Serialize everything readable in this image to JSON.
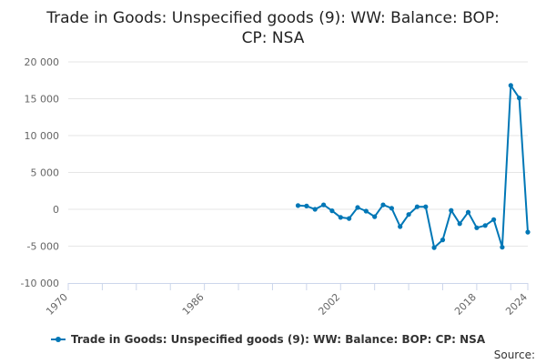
{
  "chart_data": {
    "type": "line",
    "title_lines": [
      "Trade in Goods: Unspecified goods (9): WW: Balance: BOP:",
      "CP: NSA"
    ],
    "xlabel": "",
    "ylabel": "",
    "ylim": [
      -10000,
      20000
    ],
    "xlim": [
      1970,
      2024
    ],
    "y_ticks": [
      {
        "value": 20000,
        "label": "20 000"
      },
      {
        "value": 15000,
        "label": "15 000"
      },
      {
        "value": 10000,
        "label": "10 000"
      },
      {
        "value": 5000,
        "label": "5 000"
      },
      {
        "value": 0,
        "label": "0"
      },
      {
        "value": -5000,
        "label": "-5 000"
      },
      {
        "value": -10000,
        "label": "-10 000"
      }
    ],
    "x_ticks": [
      {
        "value": 1970,
        "label": "1970"
      },
      {
        "value": 1986,
        "label": "1986"
      },
      {
        "value": 2002,
        "label": "2002"
      },
      {
        "value": 2018,
        "label": "2018"
      },
      {
        "value": 2024,
        "label": "2024"
      }
    ],
    "x_minor_ticks": [
      1970,
      1974,
      1978,
      1982,
      1986,
      1990,
      1994,
      1998,
      2002,
      2006,
      2010,
      2014,
      2018,
      2022,
      2024
    ],
    "grid": true,
    "legend_position": "bottom",
    "series": [
      {
        "name": "Trade in Goods: Unspecified goods (9): WW: Balance: BOP: CP: NSA",
        "color": "#0077b6",
        "x": [
          1997,
          1998,
          1999,
          2000,
          2001,
          2002,
          2003,
          2004,
          2005,
          2006,
          2007,
          2008,
          2009,
          2010,
          2011,
          2012,
          2013,
          2014,
          2015,
          2016,
          2017,
          2018,
          2019,
          2020,
          2021,
          2022,
          2023,
          2024
        ],
        "values": [
          500,
          450,
          0,
          600,
          -200,
          -1100,
          -1250,
          250,
          -250,
          -1000,
          600,
          150,
          -2350,
          -700,
          350,
          350,
          -5200,
          -4150,
          -150,
          -1950,
          -400,
          -2500,
          -2200,
          -1400,
          -5150,
          16800,
          15100,
          -3100
        ]
      }
    ]
  },
  "source_label": "Source:"
}
